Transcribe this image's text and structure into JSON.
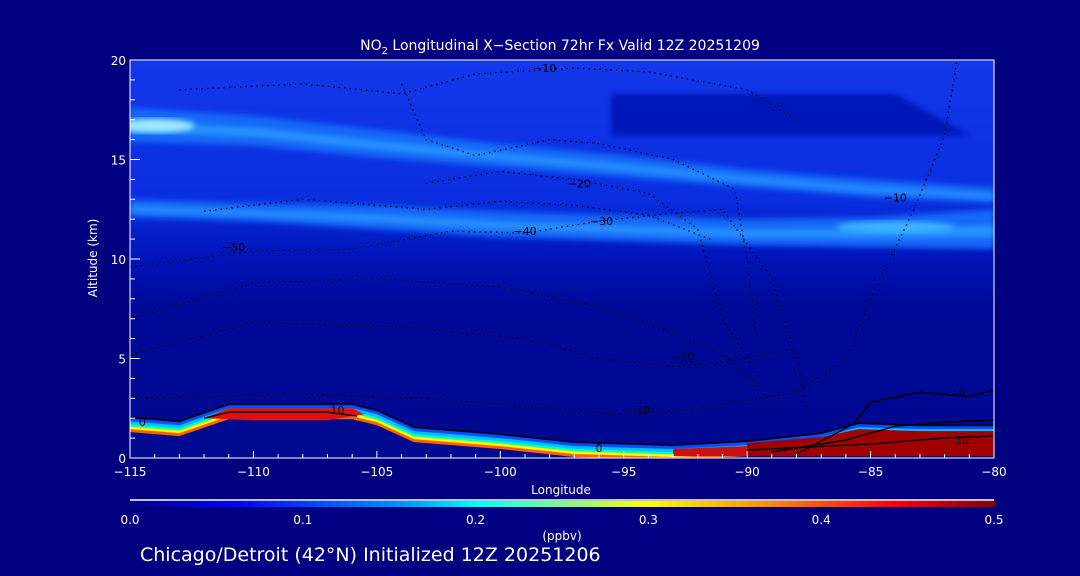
{
  "chart_data": {
    "type": "heatmap",
    "title": "NO",
    "title_sub": "2",
    "title_rest": " Longitudinal X−Section 72hr  Fx Valid 12Z 20251209",
    "xlabel": "Longitude",
    "ylabel": "Altitude (km)",
    "xlim": [
      -115,
      -80
    ],
    "ylim": [
      0,
      20
    ],
    "xticks": [
      "−115",
      "−110",
      "−105",
      "−100",
      "−95",
      "−90",
      "−85",
      "−80"
    ],
    "xtick_values": [
      -115,
      -110,
      -105,
      -100,
      -95,
      -90,
      -85,
      -80
    ],
    "yticks": [
      "0",
      "5",
      "10",
      "15",
      "20"
    ],
    "ytick_values": [
      0,
      5,
      10,
      15,
      20
    ],
    "colorbar": {
      "label": "(ppbv)",
      "range": [
        0,
        0.5
      ],
      "ticks": [
        "0.0",
        "0.1",
        "0.2",
        "0.3",
        "0.4",
        "0.5"
      ],
      "tick_values": [
        0,
        0.1,
        0.2,
        0.3,
        0.4,
        0.5
      ],
      "colors": [
        "#00008c",
        "#0000ff",
        "#0080ff",
        "#00ffff",
        "#80ff80",
        "#ffff00",
        "#ff8000",
        "#ff0000",
        "#800000"
      ]
    },
    "field_layers": [
      {
        "name": "upper-no2-layer",
        "value": 0.14,
        "top": [
          [
            -115,
            17.6
          ],
          [
            -110,
            17.2
          ],
          [
            -105,
            16.5
          ],
          [
            -100,
            15.8
          ],
          [
            -95,
            15.2
          ],
          [
            -90,
            14.5
          ],
          [
            -85,
            14.0
          ],
          [
            -80,
            13.6
          ]
        ],
        "bottom": [
          [
            -115,
            15.9
          ],
          [
            -110,
            15.7
          ],
          [
            -105,
            15.1
          ],
          [
            -100,
            14.6
          ],
          [
            -95,
            14.1
          ],
          [
            -90,
            13.6
          ],
          [
            -85,
            13.1
          ],
          [
            -80,
            12.8
          ]
        ]
      },
      {
        "name": "lower-no2-layer",
        "value": 0.13,
        "top": [
          [
            -115,
            13.0
          ],
          [
            -110,
            12.8
          ],
          [
            -105,
            12.7
          ],
          [
            -100,
            12.4
          ],
          [
            -95,
            12.2
          ],
          [
            -90,
            12.0
          ],
          [
            -85,
            12.1
          ],
          [
            -80,
            12.5
          ]
        ],
        "bottom": [
          [
            -115,
            12.1
          ],
          [
            -110,
            11.9
          ],
          [
            -105,
            11.5
          ],
          [
            -100,
            11.1
          ],
          [
            -95,
            10.9
          ],
          [
            -90,
            10.7
          ],
          [
            -85,
            10.6
          ],
          [
            -80,
            10.5
          ]
        ]
      },
      {
        "name": "boundary-layer",
        "value": 0.5,
        "top": [
          [
            -115,
            2.0
          ],
          [
            -113,
            1.8
          ],
          [
            -111,
            2.65
          ],
          [
            -106,
            2.65
          ],
          [
            -105,
            2.35
          ],
          [
            -103.5,
            1.5
          ],
          [
            -100,
            1.15
          ],
          [
            -97,
            0.75
          ],
          [
            -93,
            0.6
          ],
          [
            -90,
            0.8
          ],
          [
            -87,
            1.2
          ],
          [
            -85.5,
            1.7
          ],
          [
            -83,
            1.6
          ],
          [
            -80,
            1.6
          ]
        ]
      }
    ],
    "contour_labels": [
      {
        "text": "−10",
        "lon": -98.2,
        "alt": 19.6
      },
      {
        "text": "−20",
        "lon": -96.8,
        "alt": 13.8
      },
      {
        "text": "−30",
        "lon": -95.9,
        "alt": 11.9
      },
      {
        "text": "−40",
        "lon": -99.0,
        "alt": 11.4
      },
      {
        "text": "−50",
        "lon": -110.8,
        "alt": 10.6
      },
      {
        "text": "−20",
        "lon": -92.6,
        "alt": 5.1
      },
      {
        "text": "−10",
        "lon": -94.4,
        "alt": 2.4
      },
      {
        "text": "−10",
        "lon": -84.0,
        "alt": 13.1
      },
      {
        "text": "0",
        "lon": -114.5,
        "alt": 1.8
      },
      {
        "text": "0",
        "lon": -96.0,
        "alt": 0.5
      },
      {
        "text": "0",
        "lon": -81.3,
        "alt": 3.3
      },
      {
        "text": "10",
        "lon": -106.6,
        "alt": 2.4
      },
      {
        "text": "10",
        "lon": -81.3,
        "alt": 0.9
      }
    ]
  },
  "subtitle": "Chicago/Detroit (42°N) Initialized 12Z 20251206"
}
